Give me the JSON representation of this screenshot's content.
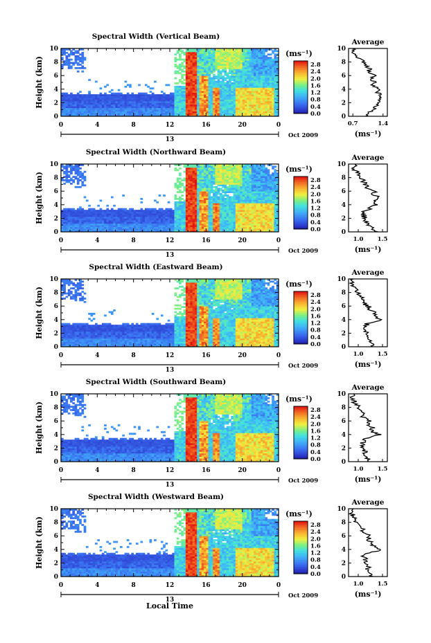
{
  "figure": {
    "xlabel": "Local Time",
    "ylabel": "Height (km)",
    "date_label": "Oct 2009",
    "day_label": "13",
    "colorbar_unit": "(ms⁻¹)",
    "average_title": "Average",
    "average_xlabel": "(ms⁻¹)"
  },
  "chart_data": [
    {
      "type": "heatmap",
      "title": "Spectral Width (Vertical Beam)",
      "x_ticks": [
        "0",
        "4",
        "8",
        "12",
        "16",
        "20",
        "0"
      ],
      "xlim": [
        0,
        24
      ],
      "y_ticks": [
        "0",
        "2",
        "4",
        "6",
        "8",
        "10"
      ],
      "ylim": [
        0,
        10
      ],
      "colorbar": {
        "ticks": [
          "0.0",
          "0.4",
          "0.8",
          "1.2",
          "1.6",
          "2.0",
          "2.4",
          "2.8"
        ],
        "range": [
          0,
          3.0
        ]
      },
      "average_profile": {
        "x_ticks": [
          "0.7",
          "1.4"
        ],
        "xlim": [
          0.6,
          1.5
        ],
        "height_km": [
          0,
          0.5,
          1,
          1.5,
          2,
          2.5,
          3,
          3.5,
          4,
          4.5,
          5,
          5.5,
          6,
          6.5,
          7,
          7.5,
          8,
          8.5,
          9,
          9.5,
          10
        ],
        "width": [
          1.0,
          1.1,
          1.15,
          1.25,
          1.3,
          1.3,
          1.4,
          1.25,
          1.3,
          1.15,
          1.2,
          1.1,
          1.2,
          1.05,
          1.1,
          1.0,
          0.95,
          0.85,
          0.8,
          0.72,
          0.7
        ]
      }
    },
    {
      "type": "heatmap",
      "title": "Spectral Width (Northward Beam)",
      "x_ticks": [
        "0",
        "4",
        "8",
        "12",
        "16",
        "20",
        "0"
      ],
      "xlim": [
        0,
        24
      ],
      "y_ticks": [
        "0",
        "2",
        "4",
        "6",
        "8",
        "10"
      ],
      "ylim": [
        0,
        10
      ],
      "colorbar": {
        "ticks": [
          "0.0",
          "0.4",
          "0.8",
          "1.2",
          "1.6",
          "2.0",
          "2.4",
          "2.8"
        ],
        "range": [
          0,
          3.0
        ]
      },
      "average_profile": {
        "x_ticks": [
          "1.0",
          "1.5"
        ],
        "xlim": [
          0.8,
          1.6
        ],
        "height_km": [
          0,
          0.5,
          1,
          1.5,
          2,
          2.5,
          3,
          3.5,
          4,
          4.5,
          5,
          5.5,
          6,
          6.5,
          7,
          7.5,
          8,
          8.5,
          9,
          9.5,
          10
        ],
        "width": [
          1.35,
          1.3,
          1.2,
          1.15,
          1.15,
          1.1,
          1.1,
          1.25,
          1.35,
          1.3,
          1.45,
          1.3,
          1.35,
          1.2,
          1.15,
          1.1,
          1.05,
          1.0,
          0.95,
          0.9,
          0.95
        ]
      }
    },
    {
      "type": "heatmap",
      "title": "Spectral Width (Eastward Beam)",
      "x_ticks": [
        "0",
        "4",
        "8",
        "12",
        "16",
        "20",
        "0"
      ],
      "xlim": [
        0,
        24
      ],
      "y_ticks": [
        "0",
        "2",
        "4",
        "6",
        "8",
        "10"
      ],
      "ylim": [
        0,
        10
      ],
      "colorbar": {
        "ticks": [
          "0.0",
          "0.4",
          "0.8",
          "1.2",
          "1.6",
          "2.0",
          "2.4",
          "2.8"
        ],
        "range": [
          0,
          3.0
        ]
      },
      "average_profile": {
        "x_ticks": [
          "1.0",
          "1.5"
        ],
        "xlim": [
          0.8,
          1.6
        ],
        "height_km": [
          0,
          0.5,
          1,
          1.5,
          2,
          2.5,
          3,
          3.5,
          4,
          4.5,
          5,
          5.5,
          6,
          6.5,
          7,
          7.5,
          8,
          8.5,
          9,
          9.5,
          10
        ],
        "width": [
          1.3,
          1.25,
          1.2,
          1.2,
          1.15,
          1.15,
          1.15,
          1.2,
          1.5,
          1.3,
          1.35,
          1.25,
          1.2,
          1.1,
          1.1,
          1.05,
          1.0,
          0.95,
          0.9,
          0.85,
          0.9
        ]
      }
    },
    {
      "type": "heatmap",
      "title": "Spectral Width (Southward Beam)",
      "x_ticks": [
        "0",
        "4",
        "8",
        "12",
        "16",
        "20",
        "0"
      ],
      "xlim": [
        0,
        24
      ],
      "y_ticks": [
        "0",
        "2",
        "4",
        "6",
        "8",
        "10"
      ],
      "ylim": [
        0,
        10
      ],
      "colorbar": {
        "ticks": [
          "0.0",
          "0.4",
          "0.8",
          "1.2",
          "1.6",
          "2.0",
          "2.4",
          "2.8"
        ],
        "range": [
          0,
          3.0
        ]
      },
      "average_profile": {
        "x_ticks": [
          "1.0",
          "1.5"
        ],
        "xlim": [
          0.8,
          1.6
        ],
        "height_km": [
          0,
          0.5,
          1,
          1.5,
          2,
          2.5,
          3,
          3.5,
          4,
          4.5,
          5,
          5.5,
          6,
          6.5,
          7,
          7.5,
          8,
          8.5,
          9,
          9.5,
          10
        ],
        "width": [
          1.25,
          1.2,
          1.15,
          1.15,
          1.1,
          1.1,
          1.1,
          1.2,
          1.45,
          1.25,
          1.3,
          1.2,
          1.25,
          1.1,
          1.1,
          1.05,
          1.0,
          0.95,
          0.9,
          0.85,
          0.9
        ]
      }
    },
    {
      "type": "heatmap",
      "title": "Spectral Width (Westward Beam)",
      "x_ticks": [
        "0",
        "4",
        "8",
        "12",
        "16",
        "20",
        "0"
      ],
      "xlim": [
        0,
        24
      ],
      "y_ticks": [
        "0",
        "2",
        "4",
        "6",
        "8",
        "10"
      ],
      "ylim": [
        0,
        10
      ],
      "colorbar": {
        "ticks": [
          "0.0",
          "0.4",
          "0.8",
          "1.2",
          "1.6",
          "2.0",
          "2.4",
          "2.8"
        ],
        "range": [
          0,
          3.0
        ]
      },
      "average_profile": {
        "x_ticks": [
          "1.0",
          "1.5"
        ],
        "xlim": [
          0.8,
          1.6
        ],
        "height_km": [
          0,
          0.5,
          1,
          1.5,
          2,
          2.5,
          3,
          3.5,
          4,
          4.5,
          5,
          5.5,
          6,
          6.5,
          7,
          7.5,
          8,
          8.5,
          9,
          9.5,
          10
        ],
        "width": [
          1.3,
          1.25,
          1.2,
          1.2,
          1.15,
          1.15,
          1.1,
          1.25,
          1.5,
          1.3,
          1.3,
          1.2,
          1.25,
          1.1,
          1.1,
          1.0,
          0.95,
          0.9,
          0.9,
          0.85,
          0.9
        ]
      }
    }
  ]
}
